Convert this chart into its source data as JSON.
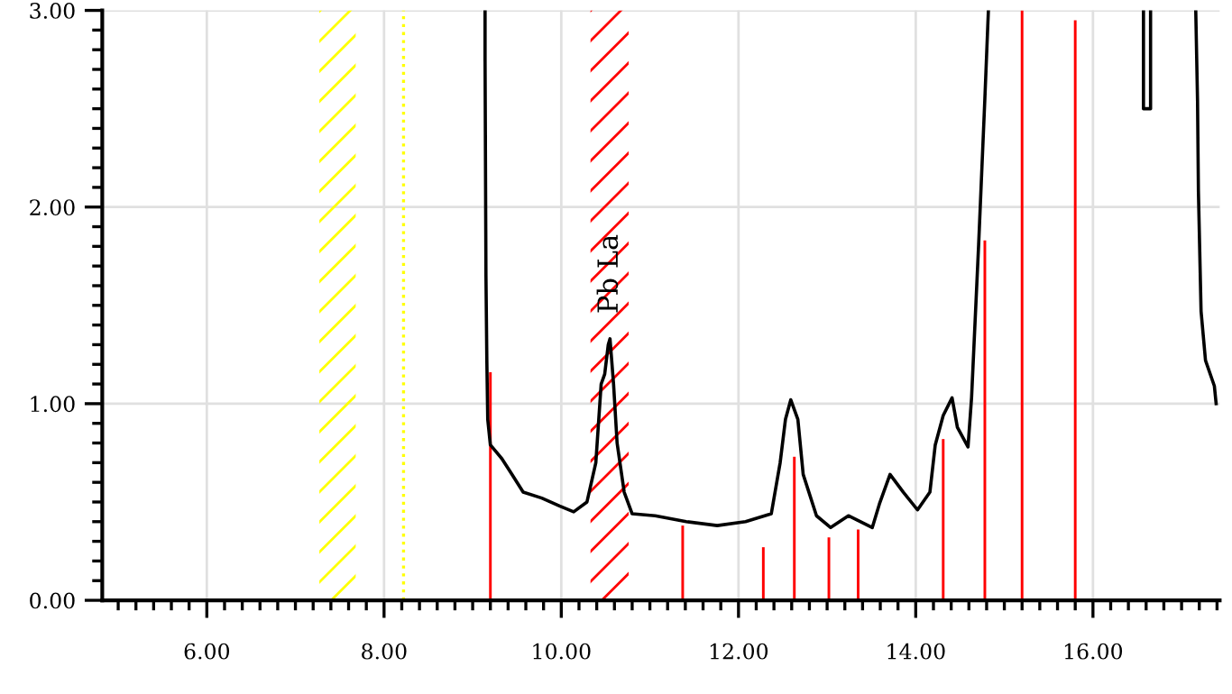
{
  "chart_data": {
    "type": "line",
    "x": [
      9.14,
      9.14,
      9.15,
      9.16,
      9.17,
      9.2,
      9.33,
      9.43,
      9.57,
      9.78,
      9.98,
      10.14,
      10.29,
      10.39,
      10.45,
      10.49,
      10.53,
      10.55,
      10.59,
      10.63,
      10.71,
      10.8,
      11.06,
      11.41,
      11.76,
      12.08,
      12.37,
      12.47,
      12.53,
      12.59,
      12.67,
      12.73,
      12.88,
      13.04,
      13.24,
      13.51,
      13.59,
      13.71,
      13.86,
      14.02,
      14.16,
      14.22,
      14.31,
      14.41,
      14.47,
      14.59,
      14.63,
      14.71,
      14.78,
      14.82,
      15.5,
      16.57,
      16.57,
      16.65,
      16.65,
      16.9,
      17.16,
      17.18,
      17.19,
      17.22,
      17.27,
      17.37,
      17.39
    ],
    "series": [
      {
        "type": "bar",
        "color": "#ff0000",
        "x": [
          9.2,
          11.37,
          12.28,
          12.63,
          13.02,
          13.35,
          14.31,
          14.78,
          15.2,
          15.8
        ],
        "values": [
          1.16,
          0.38,
          0.27,
          0.73,
          0.32,
          0.36,
          0.82,
          1.83,
          3.0,
          2.95
        ]
      },
      {
        "color": "#000000",
        "values": [
          3.0,
          2.75,
          1.65,
          1.22,
          0.92,
          0.79,
          0.72,
          0.65,
          0.55,
          0.52,
          0.48,
          0.45,
          0.5,
          0.7,
          1.1,
          1.15,
          1.3,
          1.33,
          1.1,
          0.8,
          0.55,
          0.44,
          0.43,
          0.4,
          0.38,
          0.4,
          0.44,
          0.7,
          0.92,
          1.02,
          0.92,
          0.64,
          0.43,
          0.37,
          0.43,
          0.37,
          0.49,
          0.64,
          0.55,
          0.46,
          0.55,
          0.79,
          0.94,
          1.03,
          0.88,
          0.78,
          1.03,
          1.81,
          2.55,
          3.0,
          null,
          3.0,
          2.5,
          2.5,
          3.0,
          null,
          3.0,
          2.54,
          2.08,
          1.47,
          1.22,
          1.09,
          1.0
        ]
      }
    ],
    "xlim": [
      4.82,
      17.43
    ],
    "ylim": [
      0,
      3.0
    ],
    "xticks": [
      {
        "value": 5.0,
        "label": null
      },
      {
        "value": 5.2,
        "label": null
      },
      {
        "value": 5.4,
        "label": null
      },
      {
        "value": 5.6,
        "label": null
      },
      {
        "value": 5.8,
        "label": null
      },
      {
        "value": 6,
        "label": "6.00"
      },
      {
        "value": 6.2,
        "label": null
      },
      {
        "value": 6.4,
        "label": null
      },
      {
        "value": 6.6,
        "label": null
      },
      {
        "value": 6.8,
        "label": null
      },
      {
        "value": 7.0,
        "label": null
      },
      {
        "value": 7.2,
        "label": null
      },
      {
        "value": 7.4,
        "label": null
      },
      {
        "value": 7.6,
        "label": null
      },
      {
        "value": 7.8,
        "label": null
      },
      {
        "value": 8,
        "label": "8.00"
      },
      {
        "value": 8.2,
        "label": null
      },
      {
        "value": 8.4,
        "label": null
      },
      {
        "value": 8.6,
        "label": null
      },
      {
        "value": 8.8,
        "label": null
      },
      {
        "value": 9.0,
        "label": null
      },
      {
        "value": 9.2,
        "label": null
      },
      {
        "value": 9.4,
        "label": null
      },
      {
        "value": 9.6,
        "label": null
      },
      {
        "value": 9.8,
        "label": null
      },
      {
        "value": 10,
        "label": "10.00"
      },
      {
        "value": 10.2,
        "label": null
      },
      {
        "value": 10.4,
        "label": null
      },
      {
        "value": 10.6,
        "label": null
      },
      {
        "value": 10.8,
        "label": null
      },
      {
        "value": 11.0,
        "label": null
      },
      {
        "value": 11.2,
        "label": null
      },
      {
        "value": 11.4,
        "label": null
      },
      {
        "value": 11.6,
        "label": null
      },
      {
        "value": 11.8,
        "label": null
      },
      {
        "value": 12,
        "label": "12.00"
      },
      {
        "value": 12.2,
        "label": null
      },
      {
        "value": 12.4,
        "label": null
      },
      {
        "value": 12.6,
        "label": null
      },
      {
        "value": 12.8,
        "label": null
      },
      {
        "value": 13.0,
        "label": null
      },
      {
        "value": 13.2,
        "label": null
      },
      {
        "value": 13.4,
        "label": null
      },
      {
        "value": 13.6,
        "label": null
      },
      {
        "value": 13.8,
        "label": null
      },
      {
        "value": 14,
        "label": "14.00"
      },
      {
        "value": 14.2,
        "label": null
      },
      {
        "value": 14.4,
        "label": null
      },
      {
        "value": 14.6,
        "label": null
      },
      {
        "value": 14.8,
        "label": null
      },
      {
        "value": 15.0,
        "label": null
      },
      {
        "value": 15.2,
        "label": null
      },
      {
        "value": 15.4,
        "label": null
      },
      {
        "value": 15.6,
        "label": null
      },
      {
        "value": 15.8,
        "label": null
      },
      {
        "value": 16,
        "label": "16.00"
      },
      {
        "value": 16.2,
        "label": null
      },
      {
        "value": 16.4,
        "label": null
      },
      {
        "value": 16.6,
        "label": null
      },
      {
        "value": 16.8,
        "label": null
      },
      {
        "value": 17.0,
        "label": null
      },
      {
        "value": 17.2,
        "label": null
      },
      {
        "value": 17.4,
        "label": null
      }
    ],
    "yticks": [
      {
        "value": 0,
        "label": "0.00"
      },
      {
        "value": 0.1,
        "label": null
      },
      {
        "value": 0.2,
        "label": null
      },
      {
        "value": 0.3,
        "label": null
      },
      {
        "value": 0.4,
        "label": null
      },
      {
        "value": 0.5,
        "label": null
      },
      {
        "value": 0.6,
        "label": null
      },
      {
        "value": 0.7,
        "label": null
      },
      {
        "value": 0.8,
        "label": null
      },
      {
        "value": 0.9,
        "label": null
      },
      {
        "value": 1,
        "label": "1.00"
      },
      {
        "value": 1.1,
        "label": null
      },
      {
        "value": 1.2,
        "label": null
      },
      {
        "value": 1.3,
        "label": null
      },
      {
        "value": 1.4,
        "label": null
      },
      {
        "value": 1.5,
        "label": null
      },
      {
        "value": 1.6,
        "label": null
      },
      {
        "value": 1.7,
        "label": null
      },
      {
        "value": 1.8,
        "label": null
      },
      {
        "value": 1.9,
        "label": null
      },
      {
        "value": 2,
        "label": "2.00"
      },
      {
        "value": 2.1,
        "label": null
      },
      {
        "value": 2.2,
        "label": null
      },
      {
        "value": 2.3,
        "label": null
      },
      {
        "value": 2.4,
        "label": null
      },
      {
        "value": 2.5,
        "label": null
      },
      {
        "value": 2.6,
        "label": null
      },
      {
        "value": 2.7,
        "label": null
      },
      {
        "value": 2.8,
        "label": null
      },
      {
        "value": 2.9,
        "label": null
      },
      {
        "value": 3,
        "label": "3.00"
      }
    ],
    "grid": true,
    "marker": "none",
    "line_style": "solid",
    "legend": false,
    "annotations": [
      {
        "text": "Pb La",
        "x": 10.55,
        "y": 1.33
      }
    ],
    "bands": [
      {
        "axis": "x",
        "from": 7.27,
        "to": 7.68,
        "label": null,
        "color": "#ffff00"
      },
      {
        "axis": "x",
        "from": 10.33,
        "to": 10.76,
        "label": null,
        "color": "#ff0000"
      }
    ],
    "ref_lines": [
      {
        "axis": "x",
        "value": 8.22,
        "label": null,
        "color": "#ffff00",
        "line_style": "dotted"
      }
    ]
  }
}
